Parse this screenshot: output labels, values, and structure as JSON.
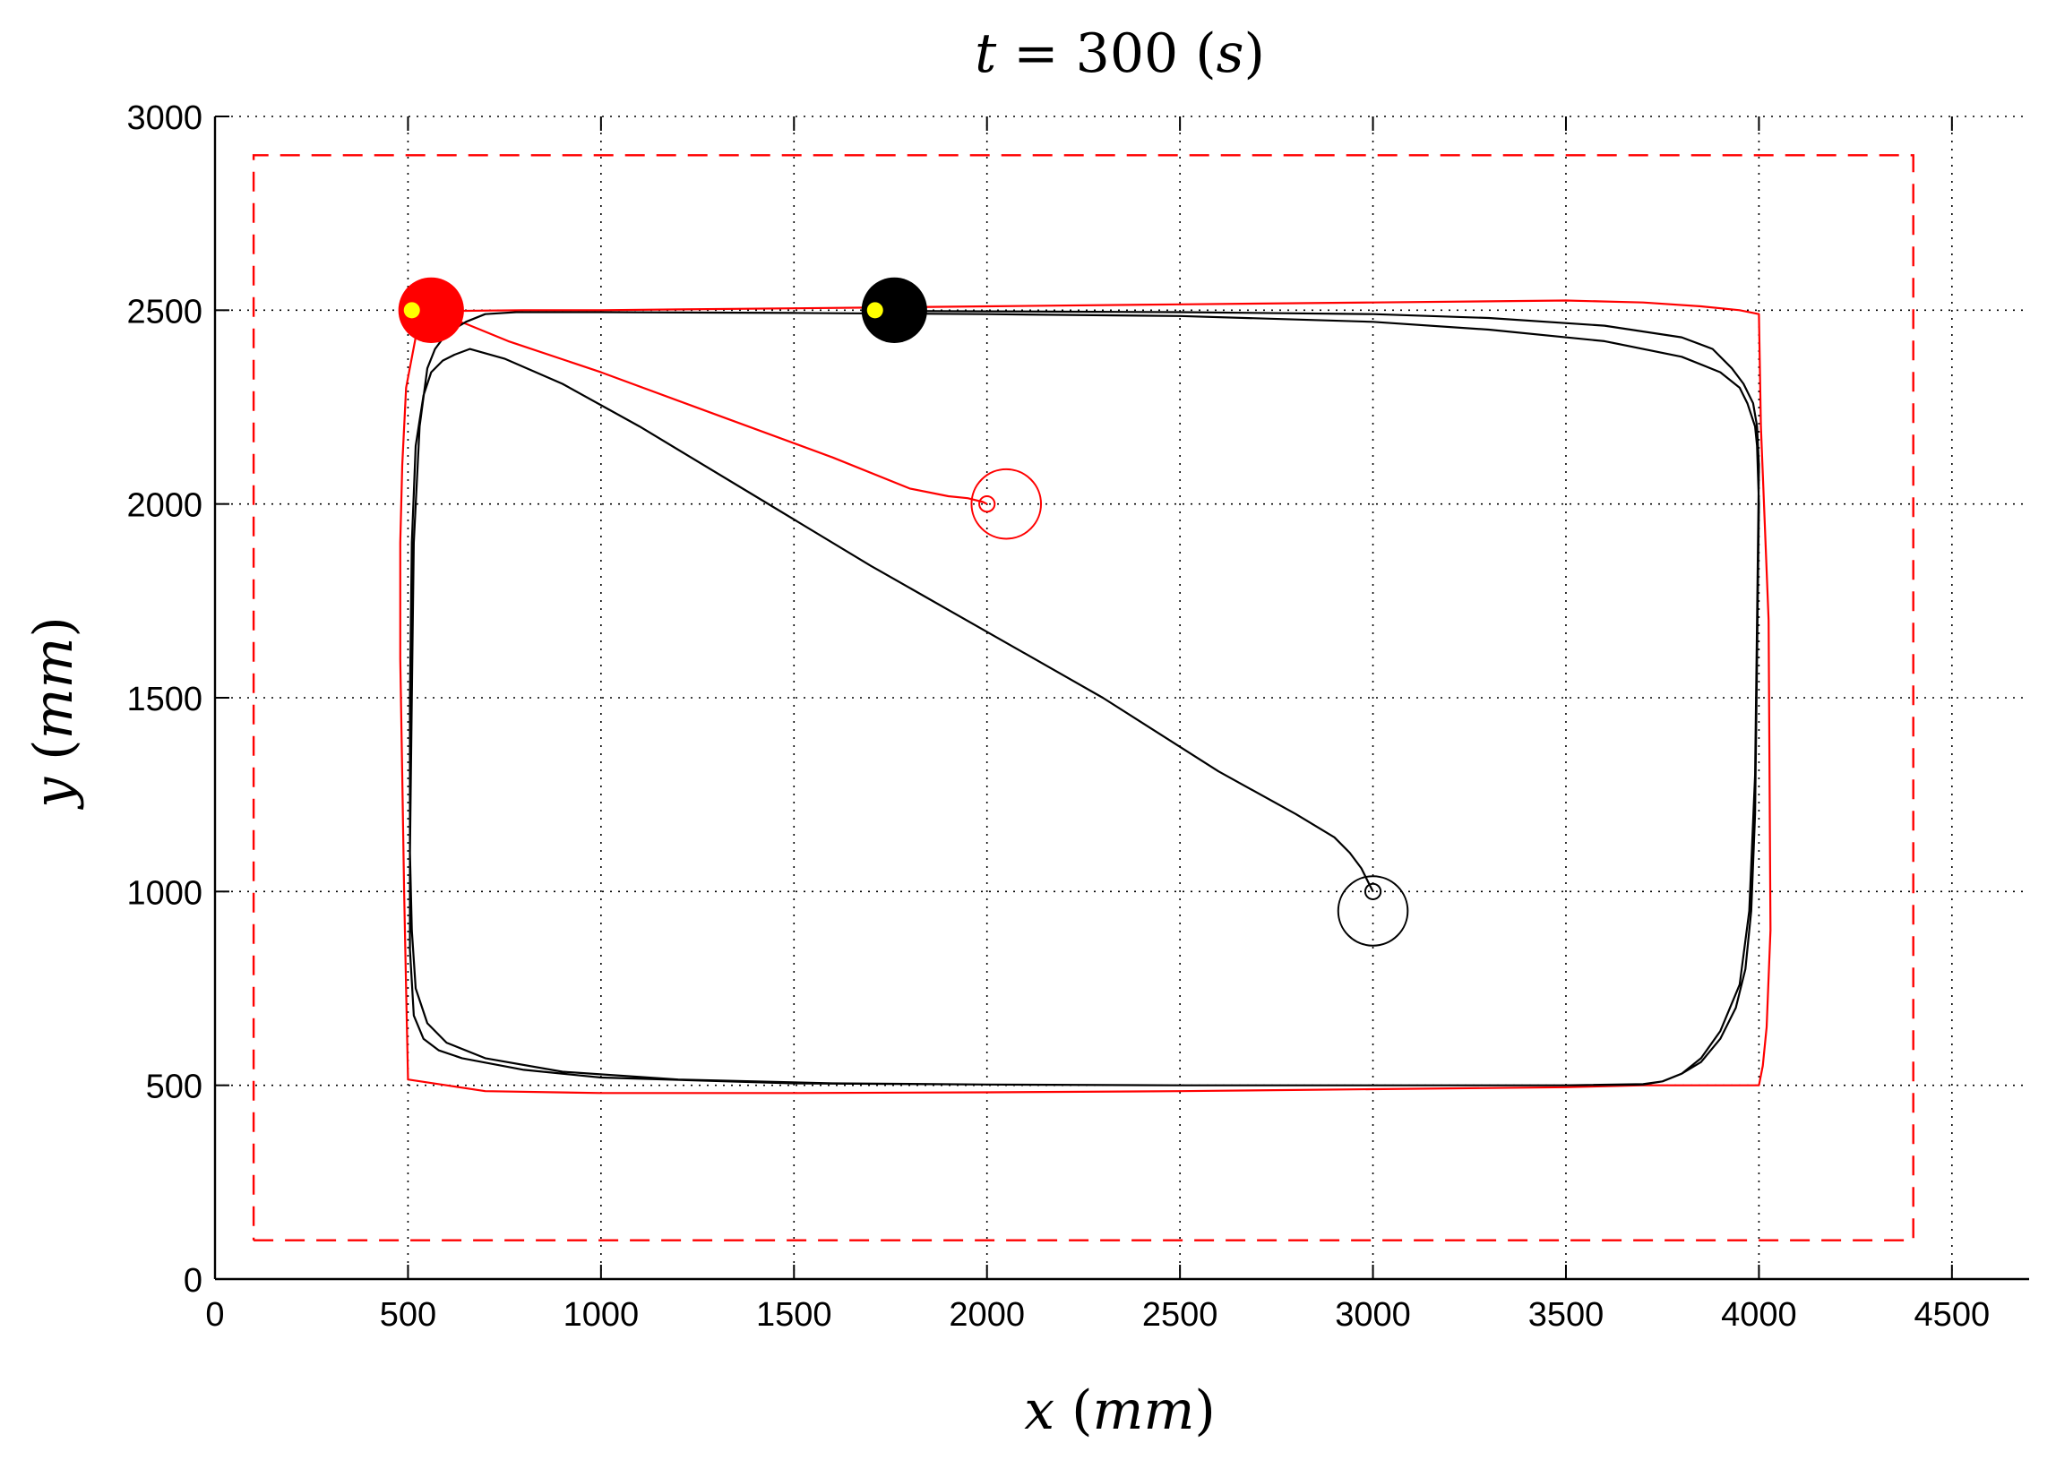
{
  "chart_data": {
    "type": "line",
    "title": "t = 300 (s)",
    "xlabel": "x (mm)",
    "ylabel": "y (mm)",
    "xlim": [
      0,
      4700
    ],
    "ylim": [
      0,
      3000
    ],
    "xticks": [
      "0",
      "500",
      "1000",
      "1500",
      "2000",
      "2500",
      "3000",
      "3500",
      "4000",
      "4500"
    ],
    "yticks": [
      "0",
      "500",
      "1000",
      "1500",
      "2000",
      "2500",
      "3000"
    ],
    "grid": true,
    "colors": {
      "red": "#ff0000",
      "black": "#000000",
      "yellow": "#ffff00",
      "grid": "#000000"
    },
    "boundary": {
      "style": "dashed",
      "color": "#ff0000",
      "x": [
        100,
        4400,
        4400,
        100,
        100
      ],
      "y": [
        100,
        100,
        2900,
        2900,
        100
      ]
    },
    "series": [
      {
        "color": "#ff0000",
        "x": [
          2000,
          1990,
          1950,
          1900,
          1800,
          1600,
          1300,
          1000,
          760,
          650,
          570,
          520,
          495,
          485,
          480,
          480,
          485,
          490,
          495,
          500,
          500,
          600,
          700,
          1000,
          1500,
          2000,
          2500,
          3000,
          3500,
          3700,
          3850,
          3950,
          4000,
          4010,
          4020,
          4030,
          4025,
          4005,
          4000,
          3950,
          3850,
          3700,
          3500,
          3000,
          2500,
          2000,
          1500,
          1000,
          800,
          600
        ],
        "y": [
          2000,
          2005,
          2015,
          2020,
          2040,
          2120,
          2230,
          2340,
          2420,
          2465,
          2490,
          2430,
          2300,
          2100,
          1900,
          1600,
          1300,
          1000,
          750,
          520,
          515,
          500,
          485,
          480,
          480,
          482,
          485,
          490,
          495,
          500,
          500,
          500,
          500,
          550,
          650,
          900,
          1700,
          2200,
          2490,
          2500,
          2510,
          2520,
          2525,
          2520,
          2515,
          2510,
          2505,
          2500,
          2500,
          2498
        ]
      },
      {
        "color": "#000000",
        "x": [
          3000,
          2990,
          2970,
          2940,
          2900,
          2800,
          2600,
          2300,
          2000,
          1700,
          1400,
          1100,
          900,
          750,
          660,
          620,
          590,
          560,
          540,
          520,
          510,
          505,
          505,
          510,
          520,
          550,
          600,
          700,
          900,
          1200,
          1600,
          2000,
          2500,
          3000,
          3500,
          3700,
          3750,
          3800,
          3850,
          3900,
          3940,
          3965,
          3980,
          3990,
          3995,
          4000,
          3995,
          3990,
          3970,
          3950,
          3900,
          3800,
          3600,
          3300,
          3000,
          2500,
          2000,
          1500,
          1000,
          780,
          700,
          650,
          600,
          570,
          550,
          530,
          515,
          510,
          505,
          505,
          515,
          540,
          580,
          640,
          720,
          800,
          1000,
          1500,
          2000,
          2500,
          3000,
          3500,
          3700,
          3750,
          3800,
          3850,
          3900,
          3950,
          3975,
          3990,
          3995,
          4000,
          3995,
          3985,
          3960,
          3930,
          3880,
          3800,
          3600,
          3300,
          3000,
          2500,
          2000,
          1760
        ],
        "y": [
          1000,
          1020,
          1060,
          1100,
          1140,
          1200,
          1310,
          1500,
          1670,
          1840,
          2020,
          2200,
          2310,
          2375,
          2400,
          2385,
          2370,
          2340,
          2280,
          2150,
          1900,
          1500,
          1100,
          900,
          750,
          660,
          610,
          570,
          535,
          515,
          505,
          502,
          500,
          500,
          500,
          503,
          510,
          530,
          560,
          620,
          700,
          800,
          950,
          1200,
          1600,
          2000,
          2150,
          2200,
          2260,
          2300,
          2340,
          2380,
          2420,
          2450,
          2470,
          2485,
          2490,
          2493,
          2495,
          2495,
          2490,
          2470,
          2440,
          2400,
          2350,
          2200,
          1900,
          1500,
          1100,
          850,
          680,
          620,
          590,
          570,
          555,
          540,
          520,
          505,
          502,
          500,
          500,
          500,
          502,
          510,
          530,
          570,
          640,
          760,
          950,
          1300,
          1700,
          2100,
          2200,
          2260,
          2310,
          2350,
          2400,
          2430,
          2460,
          2480,
          2490,
          2495,
          2497,
          2498
        ]
      }
    ],
    "markers": [
      {
        "x": 560,
        "y": 2500,
        "r": 85,
        "color": "#ff0000",
        "dot_x": 510,
        "dot_y": 2500,
        "dot_color": "#ffff00"
      },
      {
        "x": 1760,
        "y": 2500,
        "r": 85,
        "color": "#000000",
        "dot_x": 1710,
        "dot_y": 2500,
        "dot_color": "#ffff00"
      }
    ],
    "start_rings": [
      {
        "x": 2000,
        "y": 2000,
        "r": 20,
        "color": "#ff0000"
      },
      {
        "x": 2050,
        "y": 2000,
        "r": 90,
        "color": "#ff0000"
      },
      {
        "x": 3000,
        "y": 1000,
        "r": 20,
        "color": "#000000"
      },
      {
        "x": 3000,
        "y": 950,
        "r": 90,
        "color": "#000000"
      }
    ]
  }
}
